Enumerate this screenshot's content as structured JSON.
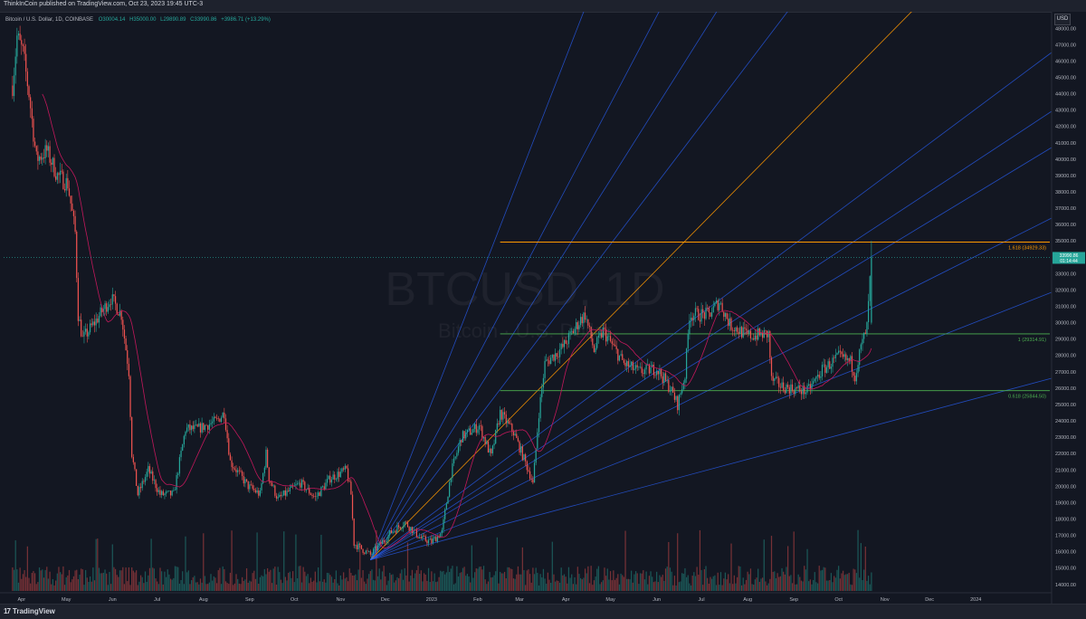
{
  "header": {
    "published_by": "ThinkInCoin published on TradingView.com, Oct 23, 2023 19:45 UTC-3"
  },
  "legend": {
    "symbol_desc": "Bitcoin / U.S. Dollar, 1D, COINBASE",
    "open": "O30004.14",
    "high": "H35000.00",
    "low": "L29890.89",
    "close": "C33990.86",
    "change": "+3986.71 (+13.29%)"
  },
  "currency": "USD",
  "watermark": {
    "symbol": "BTCUSD, 1D",
    "description": "Bitcoin · U.S. Dollar"
  },
  "footer": {
    "brand": "TradingView"
  },
  "colors": {
    "background": "#131722",
    "up": "#26a69a",
    "down": "#ef5350",
    "ma": "#c2185b",
    "fan": "#2962ff",
    "fan_gold": "#ff9800",
    "fib_orange": "#ff9800",
    "fib_green": "#4caf50"
  },
  "price_tag": {
    "value": "33990.86",
    "timer": "01:14:44"
  },
  "chart_data": {
    "type": "candlestick",
    "x_axis_labels": [
      "Apr",
      "May",
      "Jun",
      "Jul",
      "Aug",
      "Sep",
      "Oct",
      "Nov",
      "Dec",
      "2023",
      "Feb",
      "Mar",
      "Apr",
      "May",
      "Jun",
      "Jul",
      "Aug",
      "Sep",
      "Oct",
      "Nov",
      "Dec",
      "2024"
    ],
    "y_axis_labels": [
      "48000.00",
      "47000.00",
      "46000.00",
      "45000.00",
      "44000.00",
      "43000.00",
      "42000.00",
      "41000.00",
      "40000.00",
      "39000.00",
      "38000.00",
      "37000.00",
      "36000.00",
      "35000.00",
      "34000.00",
      "33000.00",
      "32000.00",
      "31000.00",
      "30000.00",
      "29000.00",
      "28000.00",
      "27000.00",
      "26000.00",
      "25000.00",
      "24000.00",
      "23000.00",
      "22000.00",
      "21000.00",
      "20000.00",
      "19000.00",
      "18000.00",
      "17000.00",
      "16000.00",
      "15000.00",
      "14000.00"
    ],
    "ylim": [
      13600,
      48900
    ],
    "price_path": [
      [
        "2022-03-26",
        44500
      ],
      [
        "2022-03-29",
        47500
      ],
      [
        "2022-04-02",
        46500
      ],
      [
        "2022-04-06",
        44000
      ],
      [
        "2022-04-11",
        40000
      ],
      [
        "2022-04-18",
        40500
      ],
      [
        "2022-04-25",
        39000
      ],
      [
        "2022-05-02",
        38500
      ],
      [
        "2022-05-07",
        35500
      ],
      [
        "2022-05-09",
        30500
      ],
      [
        "2022-05-12",
        29000
      ],
      [
        "2022-05-20",
        30000
      ],
      [
        "2022-05-31",
        31500
      ],
      [
        "2022-06-07",
        30500
      ],
      [
        "2022-06-12",
        27000
      ],
      [
        "2022-06-14",
        22000
      ],
      [
        "2022-06-18",
        19500
      ],
      [
        "2022-06-25",
        21000
      ],
      [
        "2022-07-03",
        19500
      ],
      [
        "2022-07-12",
        19500
      ],
      [
        "2022-07-20",
        23500
      ],
      [
        "2022-07-28",
        23500
      ],
      [
        "2022-08-10",
        24000
      ],
      [
        "2022-08-15",
        24500
      ],
      [
        "2022-08-19",
        21500
      ],
      [
        "2022-08-31",
        20000
      ],
      [
        "2022-09-08",
        19500
      ],
      [
        "2022-09-12",
        22000
      ],
      [
        "2022-09-14",
        20500
      ],
      [
        "2022-09-20",
        19200
      ],
      [
        "2022-10-05",
        20200
      ],
      [
        "2022-10-15",
        19300
      ],
      [
        "2022-10-25",
        20500
      ],
      [
        "2022-11-05",
        21000
      ],
      [
        "2022-11-08",
        19500
      ],
      [
        "2022-11-10",
        16500
      ],
      [
        "2022-11-21",
        15800
      ],
      [
        "2022-12-05",
        17200
      ],
      [
        "2022-12-14",
        17800
      ],
      [
        "2022-12-25",
        16800
      ],
      [
        "2023-01-01",
        16600
      ],
      [
        "2023-01-08",
        17200
      ],
      [
        "2023-01-14",
        20800
      ],
      [
        "2023-01-21",
        23000
      ],
      [
        "2023-02-02",
        23700
      ],
      [
        "2023-02-10",
        21800
      ],
      [
        "2023-02-16",
        24500
      ],
      [
        "2023-02-25",
        23300
      ],
      [
        "2023-03-09",
        20500
      ],
      [
        "2023-03-10",
        20100
      ],
      [
        "2023-03-14",
        24500
      ],
      [
        "2023-03-18",
        27500
      ],
      [
        "2023-03-30",
        28500
      ],
      [
        "2023-04-11",
        30200
      ],
      [
        "2023-04-14",
        30500
      ],
      [
        "2023-04-20",
        28300
      ],
      [
        "2023-04-26",
        29500
      ],
      [
        "2023-05-10",
        27500
      ],
      [
        "2023-05-20",
        27000
      ],
      [
        "2023-06-01",
        27200
      ],
      [
        "2023-06-10",
        26000
      ],
      [
        "2023-06-15",
        25000
      ],
      [
        "2023-06-20",
        26800
      ],
      [
        "2023-06-23",
        30500
      ],
      [
        "2023-07-06",
        30500
      ],
      [
        "2023-07-13",
        31300
      ],
      [
        "2023-07-20",
        29900
      ],
      [
        "2023-08-01",
        29200
      ],
      [
        "2023-08-15",
        29300
      ],
      [
        "2023-08-17",
        26500
      ],
      [
        "2023-08-24",
        26100
      ],
      [
        "2023-09-10",
        25800
      ],
      [
        "2023-09-20",
        27100
      ],
      [
        "2023-10-01",
        27900
      ],
      [
        "2023-10-09",
        27600
      ],
      [
        "2023-10-12",
        26800
      ],
      [
        "2023-10-16",
        28500
      ],
      [
        "2023-10-20",
        29700
      ],
      [
        "2023-10-23",
        33990
      ]
    ],
    "fib_levels": [
      {
        "label": "1.618 (34929.33)",
        "price": 34929.33
      },
      {
        "label": "1 (29314.91)",
        "price": 29314.91
      },
      {
        "label": "0.618 (25844.50)",
        "price": 25844.5
      }
    ],
    "gann_fan_origin": [
      "2022-11-21",
      15500
    ],
    "indicators": [
      "volume",
      "moving-average"
    ]
  }
}
